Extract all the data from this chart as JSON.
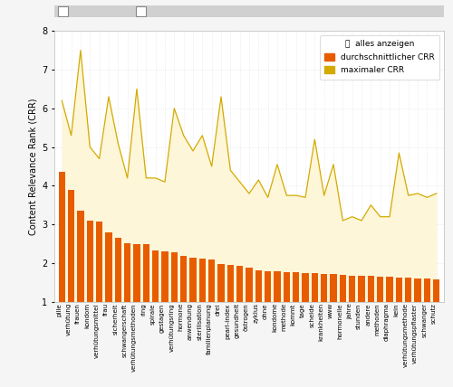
{
  "categories": [
    "pille",
    "verhütung",
    "frauen",
    "kondom",
    "verhütungsmittel",
    "frau",
    "sicherheit",
    "schwangerschaft",
    "verhütungsmethoden",
    "ring",
    "spirale",
    "gestagen",
    "verhütungsring",
    "hormone",
    "anwendung",
    "sterilisation",
    "familienplanung",
    "drei",
    "pearl-index",
    "gesundheit",
    "östrogen",
    "zyklus",
    "ohne",
    "kondome",
    "methode",
    "kommt",
    "tage",
    "scheide",
    "krankheiten",
    "www",
    "hormonelle",
    "jahre",
    "stunden",
    "andere",
    "methoden",
    "diaphragma",
    "kein",
    "verhütungsmethode",
    "verhütungspflaster",
    "schwanger",
    "schutz"
  ],
  "avg_crr": [
    4.35,
    3.9,
    3.35,
    3.1,
    3.08,
    2.8,
    2.65,
    2.52,
    2.5,
    2.5,
    2.32,
    2.3,
    2.28,
    2.18,
    2.15,
    2.12,
    2.1,
    1.97,
    1.95,
    1.93,
    1.88,
    1.82,
    1.8,
    1.78,
    1.77,
    1.76,
    1.75,
    1.74,
    1.73,
    1.72,
    1.7,
    1.68,
    1.67,
    1.67,
    1.66,
    1.65,
    1.63,
    1.62,
    1.61,
    1.6,
    1.58
  ],
  "max_crr": [
    6.2,
    5.3,
    7.5,
    5.0,
    4.7,
    6.3,
    5.1,
    4.2,
    6.5,
    4.2,
    4.2,
    4.1,
    6.0,
    5.3,
    4.9,
    5.3,
    4.5,
    6.3,
    4.4,
    4.1,
    3.8,
    4.15,
    3.7,
    4.55,
    3.75,
    3.75,
    3.7,
    5.2,
    3.75,
    4.55,
    3.1,
    3.2,
    3.1,
    3.5,
    3.2,
    3.2,
    4.85,
    3.75,
    3.8,
    3.7,
    3.8
  ],
  "bar_color": "#e85c00",
  "area_fill_color": "#fdf6d8",
  "area_line_color": "#d4aa00",
  "background_color": "#f5f5f5",
  "plot_bg_color": "#ffffff",
  "grid_color": "#e0e0e0",
  "ylabel": "Content Relevance Rank (CRR)",
  "ylim": [
    1,
    8
  ],
  "yticks": [
    1,
    2,
    3,
    4,
    5,
    6,
    7,
    8
  ],
  "topbar_color": "#d0d0d0",
  "topbar_handle_color": "#888888",
  "legend_orange_label": "durchschnittlicher CRR",
  "legend_yellow_label": "maximaler CRR",
  "legend_extra": "alles anzeigen"
}
